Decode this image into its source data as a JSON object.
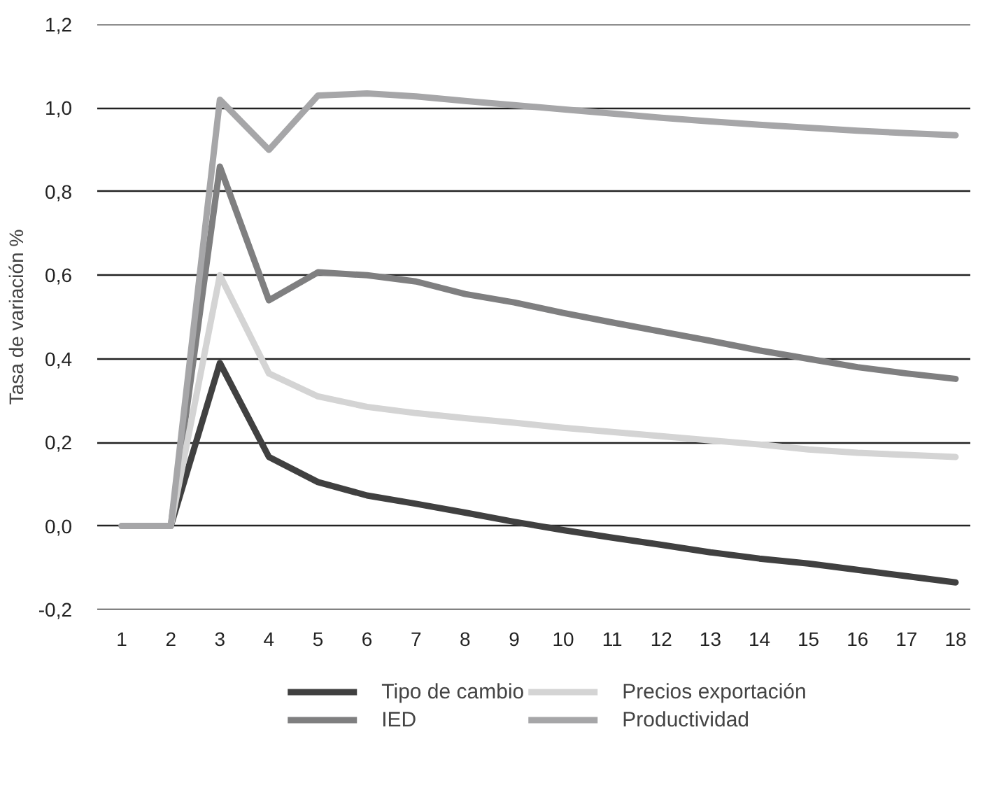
{
  "chart_data": {
    "type": "line",
    "ylabel": "Tasa de variación %",
    "x": [
      1,
      2,
      3,
      4,
      5,
      6,
      7,
      8,
      9,
      10,
      11,
      12,
      13,
      14,
      15,
      16,
      17,
      18
    ],
    "xlim": [
      0.5,
      18.3
    ],
    "xticks": [
      1,
      2,
      3,
      4,
      5,
      6,
      7,
      8,
      9,
      10,
      11,
      12,
      13,
      14,
      15,
      16,
      17,
      18
    ],
    "ylim": [
      -0.2,
      1.2
    ],
    "yticks": [
      {
        "value": -0.2,
        "label": "-0,2"
      },
      {
        "value": 0,
        "label": "0,0"
      },
      {
        "value": 0.2,
        "label": "0,2"
      },
      {
        "value": 0.4,
        "label": "0,4"
      },
      {
        "value": 0.6,
        "label": "0,6"
      },
      {
        "value": 0.8,
        "label": "0,8"
      },
      {
        "value": 1.0,
        "label": "1,0"
      },
      {
        "value": 1.2,
        "label": "1,2"
      }
    ],
    "grid": "y",
    "legend": "bottom",
    "marker": "none",
    "line_style": "solid",
    "series": [
      {
        "name": "Tipo de cambio",
        "color": "#404040",
        "values": [
          0,
          0,
          0.39,
          0.165,
          0.105,
          0.073,
          0.053,
          0.032,
          0.01,
          -0.01,
          -0.028,
          -0.045,
          -0.063,
          -0.078,
          -0.09,
          -0.105,
          -0.12,
          -0.135
        ]
      },
      {
        "name": "IED",
        "color": "#7f7f80",
        "values": [
          0,
          0,
          0.86,
          0.54,
          0.607,
          0.6,
          0.585,
          0.555,
          0.535,
          0.51,
          0.487,
          0.465,
          0.443,
          0.42,
          0.4,
          0.38,
          0.365,
          0.352
        ]
      },
      {
        "name": "Precios exportación",
        "color": "#d4d4d4",
        "values": [
          0,
          0,
          0.6,
          0.365,
          0.31,
          0.285,
          0.27,
          0.258,
          0.247,
          0.235,
          0.225,
          0.215,
          0.205,
          0.195,
          0.183,
          0.175,
          0.17,
          0.165
        ]
      },
      {
        "name": "Productividad",
        "color": "#a6a6a8",
        "values": [
          0,
          0,
          1.02,
          0.9,
          1.03,
          1.035,
          1.028,
          1.017,
          1.007,
          0.997,
          0.987,
          0.977,
          0.968,
          0.96,
          0.953,
          0.946,
          0.94,
          0.935
        ]
      }
    ]
  }
}
